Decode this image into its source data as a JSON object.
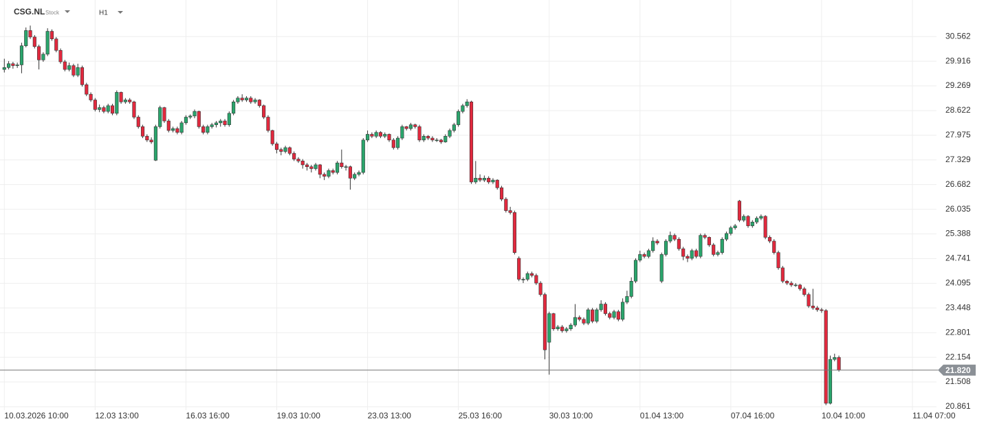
{
  "chart_data": {
    "type": "candlestick",
    "symbol": "CSG.NL",
    "instrument_type": "Stock",
    "interval": "H1",
    "up_color": "#2aa56c",
    "down_color": "#e2293e",
    "ylim": [
      20.77,
      30.98
    ],
    "yticks": [
      20.861,
      21.508,
      22.154,
      22.801,
      23.448,
      24.095,
      24.741,
      25.388,
      26.035,
      26.682,
      27.329,
      27.975,
      28.622,
      29.269,
      29.916,
      30.562
    ],
    "xlim": [
      -1,
      213.5
    ],
    "xticks": [
      {
        "value": 0,
        "label": "10.03.2026 10:00"
      },
      {
        "value": 21,
        "label": "12.03 13:00"
      },
      {
        "value": 42,
        "label": "16.03 16:00"
      },
      {
        "value": 63,
        "label": "19.03 10:00"
      },
      {
        "value": 84,
        "label": "23.03 13:00"
      },
      {
        "value": 105,
        "label": "25.03 16:00"
      },
      {
        "value": 126,
        "label": "30.03 10:00"
      },
      {
        "value": 147,
        "label": "01.04 13:00"
      },
      {
        "value": 168,
        "label": "07.04 16:00"
      },
      {
        "value": 189,
        "label": "10.04 10:00"
      },
      {
        "value": 210,
        "label": "11.04 07:00"
      }
    ],
    "grid": true,
    "last_price": 21.82,
    "last_price_label": "21.820",
    "candles": [
      [
        29.7,
        29.98,
        29.62,
        29.75
      ],
      [
        29.75,
        29.92,
        29.7,
        29.85
      ],
      [
        29.85,
        29.9,
        29.72,
        29.8
      ],
      [
        29.8,
        29.88,
        29.74,
        29.82
      ],
      [
        29.82,
        30.4,
        29.6,
        30.32
      ],
      [
        30.32,
        30.8,
        30.28,
        30.72
      ],
      [
        30.72,
        30.85,
        30.5,
        30.55
      ],
      [
        30.55,
        30.6,
        30.25,
        30.3
      ],
      [
        30.3,
        30.35,
        29.7,
        29.95
      ],
      [
        29.95,
        30.15,
        29.9,
        30.1
      ],
      [
        30.1,
        30.78,
        30.05,
        30.7
      ],
      [
        30.7,
        30.75,
        30.45,
        30.5
      ],
      [
        30.5,
        30.55,
        30.15,
        30.2
      ],
      [
        30.2,
        30.25,
        29.85,
        29.9
      ],
      [
        29.9,
        29.95,
        29.65,
        29.7
      ],
      [
        29.7,
        29.88,
        29.65,
        29.8
      ],
      [
        29.8,
        29.85,
        29.5,
        29.55
      ],
      [
        29.55,
        29.85,
        29.5,
        29.75
      ],
      [
        29.75,
        29.8,
        29.25,
        29.3
      ],
      [
        29.3,
        29.35,
        29.0,
        29.05
      ],
      [
        29.05,
        29.1,
        28.85,
        28.9
      ],
      [
        28.9,
        28.95,
        28.6,
        28.65
      ],
      [
        28.65,
        28.78,
        28.58,
        28.7
      ],
      [
        28.7,
        28.75,
        28.55,
        28.6
      ],
      [
        28.6,
        28.8,
        28.55,
        28.75
      ],
      [
        28.75,
        28.8,
        28.5,
        28.55
      ],
      [
        28.55,
        29.15,
        28.5,
        29.1
      ],
      [
        29.1,
        29.12,
        28.8,
        28.85
      ],
      [
        28.85,
        28.95,
        28.8,
        28.9
      ],
      [
        28.9,
        28.95,
        28.8,
        28.85
      ],
      [
        28.85,
        28.88,
        28.4,
        28.45
      ],
      [
        28.45,
        28.5,
        28.15,
        28.2
      ],
      [
        28.2,
        28.25,
        27.9,
        27.95
      ],
      [
        27.95,
        28.0,
        27.8,
        27.85
      ],
      [
        27.85,
        27.92,
        27.75,
        27.8
      ],
      [
        27.32,
        28.25,
        27.3,
        28.2
      ],
      [
        28.2,
        28.75,
        28.15,
        28.7
      ],
      [
        28.7,
        28.72,
        28.3,
        28.35
      ],
      [
        28.35,
        28.4,
        28.05,
        28.1
      ],
      [
        28.1,
        28.2,
        28.05,
        28.15
      ],
      [
        28.15,
        28.2,
        28.0,
        28.05
      ],
      [
        28.05,
        28.35,
        28.0,
        28.3
      ],
      [
        28.3,
        28.5,
        28.25,
        28.45
      ],
      [
        28.45,
        28.52,
        28.4,
        28.48
      ],
      [
        28.48,
        28.65,
        28.42,
        28.6
      ],
      [
        28.6,
        28.62,
        28.15,
        28.2
      ],
      [
        28.2,
        28.25,
        28.0,
        28.05
      ],
      [
        28.05,
        28.25,
        28.0,
        28.2
      ],
      [
        28.2,
        28.3,
        28.15,
        28.25
      ],
      [
        28.25,
        28.35,
        28.18,
        28.3
      ],
      [
        28.3,
        28.4,
        28.2,
        28.35
      ],
      [
        28.35,
        28.4,
        28.2,
        28.25
      ],
      [
        28.25,
        28.6,
        28.2,
        28.55
      ],
      [
        28.55,
        28.9,
        28.5,
        28.85
      ],
      [
        28.85,
        29.0,
        28.8,
        28.95
      ],
      [
        28.95,
        29.05,
        28.85,
        28.9
      ],
      [
        28.9,
        29.0,
        28.85,
        28.95
      ],
      [
        28.95,
        29.0,
        28.8,
        28.85
      ],
      [
        28.85,
        28.95,
        28.8,
        28.9
      ],
      [
        28.9,
        28.92,
        28.7,
        28.75
      ],
      [
        28.75,
        28.78,
        28.4,
        28.45
      ],
      [
        28.45,
        28.5,
        28.05,
        28.1
      ],
      [
        28.1,
        28.12,
        27.7,
        27.75
      ],
      [
        27.75,
        27.8,
        27.5,
        27.6
      ],
      [
        27.6,
        27.65,
        27.45,
        27.55
      ],
      [
        27.55,
        27.7,
        27.5,
        27.65
      ],
      [
        27.65,
        27.68,
        27.45,
        27.5
      ],
      [
        27.5,
        27.55,
        27.3,
        27.35
      ],
      [
        27.35,
        27.4,
        27.25,
        27.3
      ],
      [
        27.3,
        27.35,
        27.1,
        27.2
      ],
      [
        27.2,
        27.25,
        27.05,
        27.15
      ],
      [
        27.15,
        27.2,
        27.0,
        27.1
      ],
      [
        27.1,
        27.25,
        27.05,
        27.2
      ],
      [
        27.2,
        27.22,
        26.85,
        26.95
      ],
      [
        26.95,
        27.0,
        26.8,
        26.9
      ],
      [
        26.9,
        27.1,
        26.85,
        27.05
      ],
      [
        27.05,
        27.1,
        26.95,
        27.0
      ],
      [
        27.0,
        27.3,
        26.95,
        27.25
      ],
      [
        27.25,
        27.6,
        27.1,
        27.15
      ],
      [
        27.15,
        27.2,
        27.05,
        27.15
      ],
      [
        27.15,
        27.18,
        26.55,
        26.85
      ],
      [
        26.85,
        27.0,
        26.8,
        26.95
      ],
      [
        26.95,
        27.05,
        26.9,
        27.0
      ],
      [
        27.0,
        27.9,
        26.95,
        27.85
      ],
      [
        27.85,
        28.1,
        27.8,
        28.0
      ],
      [
        28.0,
        28.05,
        27.9,
        27.95
      ],
      [
        27.95,
        28.1,
        27.9,
        28.05
      ],
      [
        28.05,
        28.08,
        27.9,
        27.95
      ],
      [
        27.95,
        28.05,
        27.9,
        28.0
      ],
      [
        28.0,
        28.02,
        27.8,
        27.85
      ],
      [
        27.85,
        27.9,
        27.6,
        27.65
      ],
      [
        27.65,
        27.95,
        27.6,
        27.9
      ],
      [
        27.9,
        28.25,
        27.85,
        28.2
      ],
      [
        28.2,
        28.22,
        28.1,
        28.15
      ],
      [
        28.15,
        28.3,
        28.1,
        28.25
      ],
      [
        28.25,
        28.28,
        28.15,
        28.2
      ],
      [
        28.2,
        28.25,
        27.8,
        27.85
      ],
      [
        27.85,
        28.0,
        27.8,
        27.95
      ],
      [
        27.95,
        27.98,
        27.85,
        27.9
      ],
      [
        27.9,
        27.95,
        27.8,
        27.85
      ],
      [
        27.85,
        27.9,
        27.8,
        27.85
      ],
      [
        27.85,
        27.88,
        27.75,
        27.8
      ],
      [
        27.8,
        28.0,
        27.78,
        27.95
      ],
      [
        27.95,
        28.15,
        27.9,
        28.1
      ],
      [
        28.1,
        28.3,
        28.05,
        28.25
      ],
      [
        28.25,
        28.65,
        28.2,
        28.6
      ],
      [
        28.6,
        28.8,
        28.55,
        28.75
      ],
      [
        28.75,
        28.92,
        28.7,
        28.85
      ],
      [
        28.85,
        28.88,
        26.7,
        26.75
      ],
      [
        26.75,
        27.3,
        26.7,
        26.85
      ],
      [
        26.85,
        26.95,
        26.75,
        26.8
      ],
      [
        26.8,
        26.92,
        26.75,
        26.85
      ],
      [
        26.85,
        26.9,
        26.7,
        26.75
      ],
      [
        26.75,
        26.85,
        26.7,
        26.8
      ],
      [
        26.8,
        26.82,
        26.55,
        26.6
      ],
      [
        26.6,
        26.65,
        26.25,
        26.3
      ],
      [
        26.3,
        26.35,
        25.95,
        26.0
      ],
      [
        26.0,
        26.1,
        25.9,
        25.95
      ],
      [
        25.95,
        26.0,
        24.85,
        24.9
      ],
      [
        24.75,
        24.8,
        24.15,
        24.2
      ],
      [
        24.2,
        24.25,
        24.1,
        24.2
      ],
      [
        24.2,
        24.4,
        24.15,
        24.35
      ],
      [
        24.35,
        24.4,
        24.25,
        24.3
      ],
      [
        24.3,
        24.35,
        24.05,
        24.1
      ],
      [
        24.1,
        24.15,
        23.75,
        23.8
      ],
      [
        23.8,
        23.85,
        22.1,
        22.35
      ],
      [
        22.55,
        23.35,
        21.7,
        23.3
      ],
      [
        23.3,
        23.32,
        22.85,
        22.9
      ],
      [
        22.9,
        23.0,
        22.85,
        22.95
      ],
      [
        22.95,
        23.0,
        22.8,
        22.85
      ],
      [
        22.85,
        22.95,
        22.8,
        22.9
      ],
      [
        22.9,
        23.05,
        22.85,
        23.0
      ],
      [
        23.0,
        23.55,
        22.95,
        23.2
      ],
      [
        23.2,
        23.25,
        23.1,
        23.15
      ],
      [
        23.15,
        23.2,
        23.0,
        23.05
      ],
      [
        23.05,
        23.45,
        23.0,
        23.4
      ],
      [
        23.4,
        23.45,
        23.05,
        23.1
      ],
      [
        23.1,
        23.45,
        23.05,
        23.4
      ],
      [
        23.4,
        23.65,
        23.35,
        23.55
      ],
      [
        23.55,
        23.6,
        23.25,
        23.3
      ],
      [
        23.3,
        23.35,
        23.15,
        23.2
      ],
      [
        23.2,
        23.4,
        23.15,
        23.35
      ],
      [
        23.35,
        23.4,
        23.1,
        23.15
      ],
      [
        23.15,
        23.7,
        23.1,
        23.6
      ],
      [
        23.6,
        23.9,
        23.55,
        23.75
      ],
      [
        23.75,
        24.25,
        23.7,
        24.15
      ],
      [
        24.15,
        24.75,
        24.1,
        24.7
      ],
      [
        24.7,
        24.95,
        24.65,
        24.85
      ],
      [
        24.85,
        24.9,
        24.75,
        24.8
      ],
      [
        24.8,
        25.0,
        24.75,
        24.95
      ],
      [
        24.95,
        25.3,
        24.9,
        25.2
      ],
      [
        25.2,
        25.25,
        25.1,
        25.15
      ],
      [
        24.15,
        24.9,
        24.1,
        24.85
      ],
      [
        24.85,
        25.25,
        24.8,
        25.2
      ],
      [
        25.2,
        25.45,
        25.15,
        25.35
      ],
      [
        25.35,
        25.4,
        25.2,
        25.25
      ],
      [
        25.25,
        25.3,
        24.95,
        25.0
      ],
      [
        25.0,
        25.05,
        24.7,
        24.8
      ],
      [
        24.8,
        24.85,
        24.65,
        24.75
      ],
      [
        24.75,
        25.0,
        24.7,
        24.95
      ],
      [
        24.95,
        25.0,
        24.75,
        24.8
      ],
      [
        24.8,
        25.4,
        24.75,
        25.35
      ],
      [
        25.35,
        25.4,
        25.25,
        25.3
      ],
      [
        25.3,
        25.32,
        25.05,
        25.1
      ],
      [
        25.1,
        25.15,
        24.8,
        24.85
      ],
      [
        24.85,
        24.95,
        24.8,
        24.9
      ],
      [
        24.9,
        25.3,
        24.85,
        25.25
      ],
      [
        25.25,
        25.45,
        25.2,
        25.4
      ],
      [
        25.4,
        25.6,
        25.35,
        25.55
      ],
      [
        25.55,
        25.65,
        25.5,
        25.6
      ],
      [
        26.25,
        26.28,
        25.7,
        25.75
      ],
      [
        25.75,
        25.9,
        25.7,
        25.85
      ],
      [
        25.85,
        25.88,
        25.55,
        25.6
      ],
      [
        25.6,
        25.75,
        25.55,
        25.7
      ],
      [
        25.7,
        25.85,
        25.65,
        25.8
      ],
      [
        25.8,
        25.9,
        25.75,
        25.85
      ],
      [
        25.85,
        25.88,
        25.25,
        25.3
      ],
      [
        25.3,
        25.35,
        25.15,
        25.2
      ],
      [
        25.2,
        25.25,
        24.85,
        24.9
      ],
      [
        24.9,
        24.95,
        24.45,
        24.5
      ],
      [
        24.5,
        24.55,
        24.1,
        24.15
      ],
      [
        24.15,
        24.18,
        24.05,
        24.1
      ],
      [
        24.1,
        24.15,
        24.0,
        24.05
      ],
      [
        24.05,
        24.1,
        24.0,
        24.05
      ],
      [
        24.05,
        24.08,
        23.9,
        23.95
      ],
      [
        23.95,
        24.0,
        23.75,
        23.8
      ],
      [
        23.8,
        23.85,
        23.45,
        23.5
      ],
      [
        23.5,
        23.95,
        23.4,
        23.45
      ],
      [
        23.45,
        23.5,
        23.35,
        23.4
      ],
      [
        23.4,
        23.45,
        23.32,
        23.38
      ],
      [
        23.38,
        23.42,
        20.9,
        20.95
      ],
      [
        20.95,
        22.2,
        20.92,
        22.1
      ],
      [
        22.1,
        22.25,
        22.05,
        22.15
      ],
      [
        22.15,
        22.2,
        21.78,
        21.82
      ]
    ]
  }
}
